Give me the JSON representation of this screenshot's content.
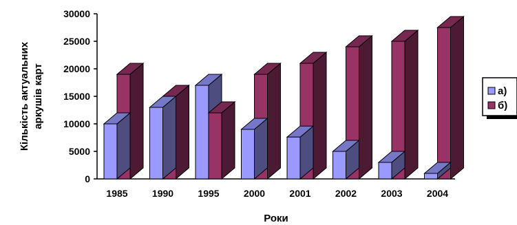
{
  "chart_data": {
    "type": "bar",
    "style": "3d-clustered-column",
    "categories": [
      "1985",
      "1990",
      "1995",
      "2000",
      "2001",
      "2002",
      "2003",
      "2004"
    ],
    "series": [
      {
        "name": "а)",
        "values": [
          10000,
          13000,
          17000,
          9000,
          7600,
          5000,
          3000,
          1000
        ],
        "color": "#9999ff"
      },
      {
        "name": "б)",
        "values": [
          19000,
          15000,
          12000,
          19000,
          21000,
          24000,
          25000,
          27500
        ],
        "color": "#993366"
      }
    ],
    "xlabel": "Роки",
    "ylabel": [
      "Кількість актуальних",
      "аркушів карт"
    ],
    "ylim": [
      0,
      30000
    ],
    "yticks": [
      "0",
      "5000",
      "10000",
      "15000",
      "20000",
      "25000",
      "30000"
    ],
    "legend_position": "right",
    "grid": false
  }
}
